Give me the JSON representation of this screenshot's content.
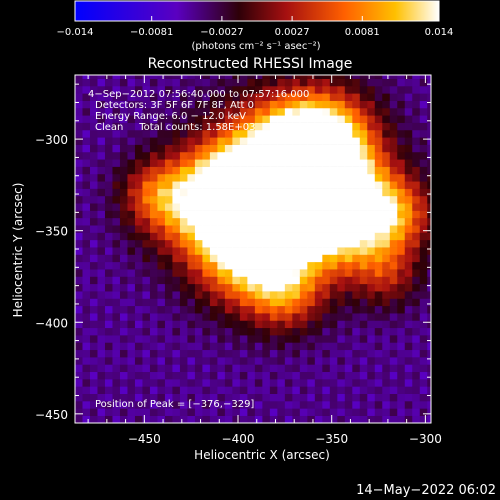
{
  "chart_data": {
    "type": "heatmap",
    "title": "Reconstructed RHESSI Image",
    "xlabel": "Heliocentric X (arcsec)",
    "ylabel": "Heliocentric Y (arcsec)",
    "xlim": [
      -487,
      -297
    ],
    "ylim": [
      -455,
      -265
    ],
    "x_ticks": [
      -450,
      -400,
      -350,
      -300
    ],
    "y_ticks": [
      -450,
      -400,
      -350,
      -300
    ],
    "x_tick_labels": [
      "−450",
      "−400",
      "−350",
      "−300"
    ],
    "y_tick_labels": [
      "−450",
      "−400",
      "−350",
      "−300"
    ],
    "colorbar": {
      "min": -0.014,
      "max": 0.014,
      "ticks": [
        -0.014,
        -0.0081,
        -0.0027,
        0.0027,
        0.0081,
        0.014
      ],
      "tick_labels": [
        "−0.014",
        "−0.0081",
        "−0.0027",
        "0.0027",
        "0.0081",
        "0.014"
      ],
      "units": "(photons cm⁻² s⁻¹ asec⁻²)",
      "colormap": [
        "#0000ff",
        "#5a00c0",
        "#3a0000",
        "#aa1010",
        "#ff6000",
        "#ffc000",
        "#ffffff"
      ]
    },
    "annotations": [
      "4−Sep−2012 07:56:40.000 to 07:57:16.000",
      "Detectors: 3F 5F 6F 7F 8F, Att 0",
      "Energy Range: 6.0 − 12.0 keV",
      "Clean     Total counts: 1.58E+03"
    ],
    "peak_label": "Position of Peak = [−376,−329]",
    "peak": [
      -376,
      -329
    ],
    "timestamp": "14−May−2022 06:02",
    "flux_peak": 0.014
  }
}
